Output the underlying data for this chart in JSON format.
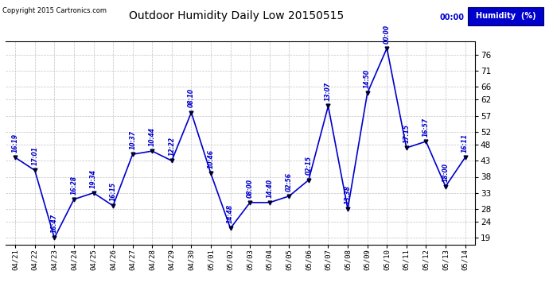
{
  "title": "Outdoor Humidity Daily Low 20150515",
  "copyright": "Copyright 2015 Cartronics.com",
  "legend_label": "Humidity  (%)",
  "background_color": "#ffffff",
  "plot_bg_color": "#ffffff",
  "grid_color": "#bbbbbb",
  "line_color": "#0000cc",
  "marker_color": "#000033",
  "text_color": "#0000cc",
  "ylim": [
    17,
    80
  ],
  "yticks": [
    19,
    24,
    28,
    33,
    38,
    43,
    48,
    52,
    57,
    62,
    66,
    71,
    76
  ],
  "x_labels": [
    "04/21",
    "04/22",
    "04/23",
    "04/24",
    "04/25",
    "04/26",
    "04/27",
    "04/28",
    "04/29",
    "04/30",
    "05/01",
    "05/02",
    "05/03",
    "05/04",
    "05/05",
    "05/06",
    "05/07",
    "05/08",
    "05/09",
    "05/10",
    "05/11",
    "05/12",
    "05/13",
    "05/14"
  ],
  "values": [
    44,
    40,
    19,
    31,
    33,
    29,
    45,
    46,
    43,
    58,
    39,
    22,
    30,
    30,
    32,
    37,
    60,
    28,
    64,
    78,
    47,
    49,
    35,
    44
  ],
  "time_labels": [
    "16:19",
    "17:01",
    "16:47",
    "16:28",
    "19:34",
    "16:15",
    "10:37",
    "10:44",
    "12:22",
    "08:10",
    "10:46",
    "14:48",
    "08:00",
    "14:40",
    "02:56",
    "02:15",
    "13:07",
    "13:38",
    "14:50",
    "00:00",
    "17:15",
    "16:57",
    "18:00",
    "16:11"
  ]
}
